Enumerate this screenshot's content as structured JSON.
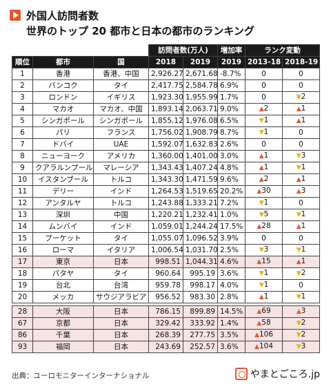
{
  "header": {
    "title_line1": "外国人訪問者数",
    "title_line2": "世界のトップ 20 都市と日本の都市のランキング"
  },
  "table": {
    "group_visitors": "訪問者数(万人)",
    "group_growth": "増加率",
    "group_rank_change": "ランク変動",
    "col_rank": "順位",
    "col_city": "都市",
    "col_country": "国",
    "col_2018": "2018",
    "col_2019": "2019",
    "col_growth_2019": "2019",
    "col_rc_2013_18": "2013-18",
    "col_rc_2018_19": "2018-19",
    "rows": [
      {
        "rank": "1",
        "city": "香港",
        "country": "香港、中国",
        "v2018": "2,926.27",
        "v2019": "2,671.68",
        "growth": "-8.7%",
        "c1dir": "",
        "c1": "0",
        "c2dir": "",
        "c2": "0"
      },
      {
        "rank": "2",
        "city": "バンコク",
        "country": "タイ",
        "v2018": "2,417.75",
        "v2019": "2,584.78",
        "growth": "6.9%",
        "c1dir": "",
        "c1": "0",
        "c2dir": "",
        "c2": "0"
      },
      {
        "rank": "3",
        "city": "ロンドン",
        "country": "イギリス",
        "v2018": "1,923.30",
        "v2019": "1,955.99",
        "growth": "1.7%",
        "c1dir": "",
        "c1": "0",
        "c2dir": "down",
        "c2": "2"
      },
      {
        "rank": "4",
        "city": "マカオ",
        "country": "マカオ、中国",
        "v2018": "1,893.14",
        "v2019": "2,063.71",
        "growth": "9.0%",
        "c1dir": "up",
        "c1": "2",
        "c2dir": "up",
        "c2": "1"
      },
      {
        "rank": "5",
        "city": "シンガポール",
        "country": "シンガポール",
        "v2018": "1,855.12",
        "v2019": "1,976.08",
        "growth": "6.5%",
        "c1dir": "down",
        "c1": "1",
        "c2dir": "up",
        "c2": "1"
      },
      {
        "rank": "6",
        "city": "パリ",
        "country": "フランス",
        "v2018": "1,756.02",
        "v2019": "1,908.79",
        "growth": "8.7%",
        "c1dir": "down",
        "c1": "1",
        "c2dir": "",
        "c2": "0"
      },
      {
        "rank": "7",
        "city": "ドバイ",
        "country": "UAE",
        "v2018": "1,592.07",
        "v2019": "1,632.83",
        "growth": "2.6%",
        "c1dir": "",
        "c1": "0",
        "c2dir": "",
        "c2": "0"
      },
      {
        "rank": "8",
        "city": "ニューヨーク",
        "country": "アメリカ",
        "v2018": "1,360.00",
        "v2019": "1,401.00",
        "growth": "3.0%",
        "c1dir": "up",
        "c1": "1",
        "c2dir": "down",
        "c2": "3"
      },
      {
        "rank": "9",
        "city": "クアラルンプール",
        "country": "マレーシア",
        "v2018": "1,343.43",
        "v2019": "1,407.24",
        "growth": "4.8%",
        "c1dir": "up",
        "c1": "1",
        "c2dir": "down",
        "c2": "1"
      },
      {
        "rank": "10",
        "city": "イスタンブール",
        "country": "トルコ",
        "v2018": "1,343.30",
        "v2019": "1,471.59",
        "growth": "9.6%",
        "c1dir": "up",
        "c1": "2",
        "c2dir": "up",
        "c2": "1"
      },
      {
        "rank": "11",
        "city": "デリー",
        "country": "インド",
        "v2018": "1,264.53",
        "v2019": "1,519.65",
        "growth": "20.2%",
        "c1dir": "up",
        "c1": "30",
        "c2dir": "up",
        "c2": "3"
      },
      {
        "rank": "12",
        "city": "アンタルヤ",
        "country": "トルコ",
        "v2018": "1,243.88",
        "v2019": "1,333.21",
        "growth": "7.2%",
        "c1dir": "down",
        "c1": "1",
        "c2dir": "",
        "c2": "0"
      },
      {
        "rank": "13",
        "city": "深圳",
        "country": "中国",
        "v2018": "1,220.21",
        "v2019": "1,232.41",
        "growth": "1.0%",
        "c1dir": "down",
        "c1": "5",
        "c2dir": "down",
        "c2": "1"
      },
      {
        "rank": "14",
        "city": "ムンバイ",
        "country": "インド",
        "v2018": "1,059.01",
        "v2019": "1,244.24",
        "growth": "17.5%",
        "c1dir": "up",
        "c1": "28",
        "c2dir": "up",
        "c2": "1"
      },
      {
        "rank": "15",
        "city": "プーケット",
        "country": "タイ",
        "v2018": "1,055.07",
        "v2019": "1,096.52",
        "growth": "3.9%",
        "c1dir": "",
        "c1": "0",
        "c2dir": "",
        "c2": "0"
      },
      {
        "rank": "16",
        "city": "ローマ",
        "country": "イタリア",
        "v2018": "1,006.54",
        "v2019": "1,031.70",
        "growth": "2.5%",
        "c1dir": "down",
        "c1": "3",
        "c2dir": "down",
        "c2": "1"
      },
      {
        "rank": "17",
        "city": "東京",
        "country": "日本",
        "v2018": "998.51",
        "v2019": "1,044.31",
        "growth": "4.6%",
        "c1dir": "up",
        "c1": "15",
        "c2dir": "up",
        "c2": "1",
        "japan": true
      },
      {
        "rank": "18",
        "city": "パタヤ",
        "country": "タイ",
        "v2018": "960.64",
        "v2019": "995.19",
        "growth": "3.6%",
        "c1dir": "down",
        "c1": "1",
        "c2dir": "down",
        "c2": "2"
      },
      {
        "rank": "19",
        "city": "台北",
        "country": "台湾",
        "v2018": "959.78",
        "v2019": "998.17",
        "growth": "4.0%",
        "c1dir": "down",
        "c1": "1",
        "c2dir": "",
        "c2": "0"
      },
      {
        "rank": "20",
        "city": "メッカ",
        "country": "サウジアラビア",
        "v2018": "956.52",
        "v2019": "983.30",
        "growth": "2.8%",
        "c1dir": "up",
        "c1": "1",
        "c2dir": "down",
        "c2": "1"
      }
    ],
    "japan_rows": [
      {
        "rank": "28",
        "city": "大阪",
        "country": "日本",
        "v2018": "786.15",
        "v2019": "899.89",
        "growth": "14.5%",
        "c1dir": "up",
        "c1": "69",
        "c2dir": "up",
        "c2": "3"
      },
      {
        "rank": "67",
        "city": "京都",
        "country": "日本",
        "v2018": "329.42",
        "v2019": "333.92",
        "growth": "1.4%",
        "c1dir": "up",
        "c1": "58",
        "c2dir": "down",
        "c2": "2"
      },
      {
        "rank": "86",
        "city": "千葉",
        "country": "日本",
        "v2018": "268.39",
        "v2019": "277.75",
        "growth": "3.5%",
        "c1dir": "up",
        "c1": "106",
        "c2dir": "down",
        "c2": "2"
      },
      {
        "rank": "93",
        "city": "福岡",
        "country": "日本",
        "v2018": "243.69",
        "v2019": "252.57",
        "growth": "3.6%",
        "c1dir": "up",
        "c1": "104",
        "c2dir": "down",
        "c2": "3"
      }
    ]
  },
  "footer": {
    "source": "出典：ユーロモニターインターナショナル",
    "brand": "やまとごころ.jp"
  },
  "colors": {
    "accent": "#e8552b",
    "down": "#e6b400",
    "japan_row_bg": "#f6e3e3",
    "header_bg": "#1a1a1a"
  },
  "icons": {
    "up": "▲",
    "down": "▼"
  }
}
